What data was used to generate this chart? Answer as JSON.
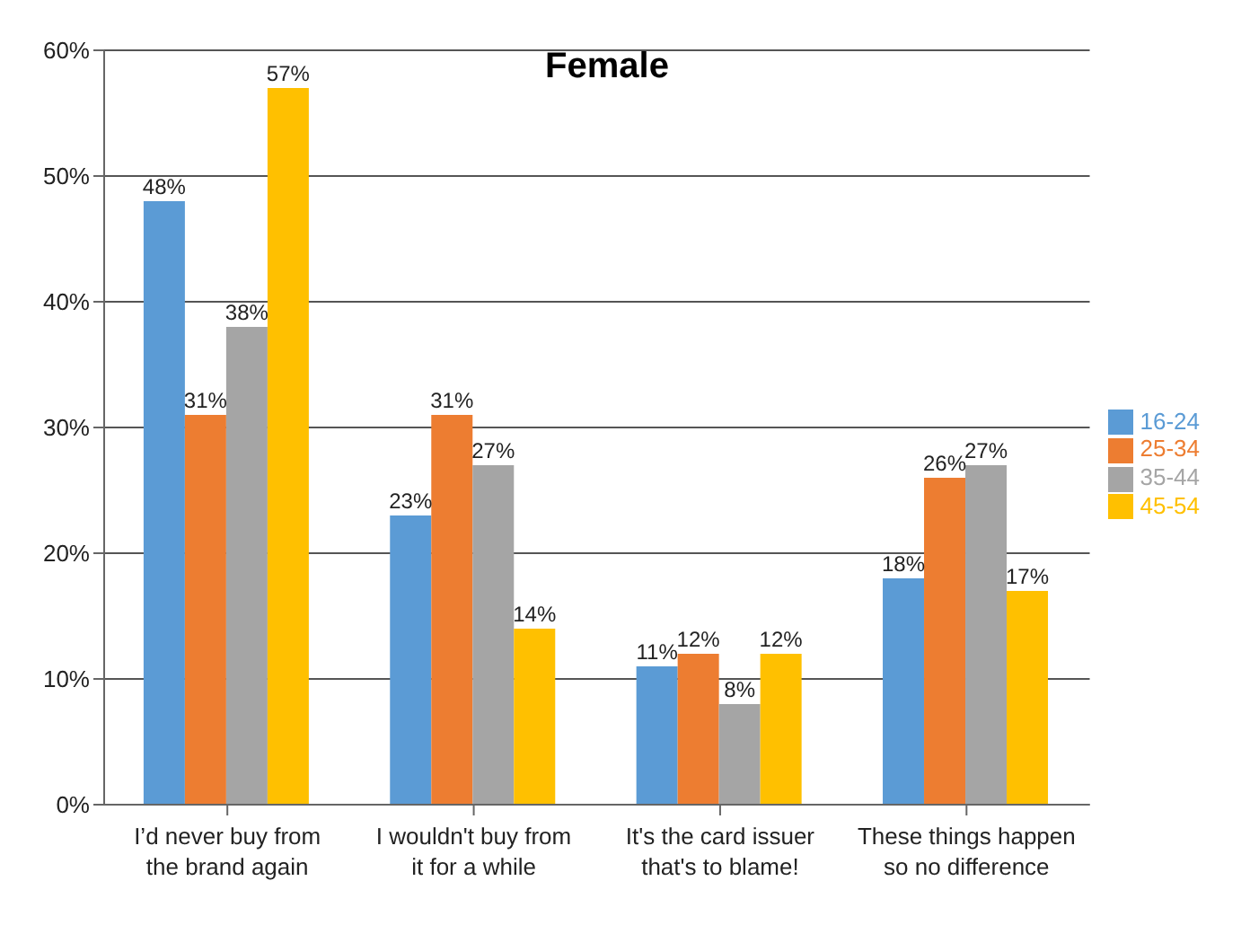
{
  "chart_data": {
    "type": "bar",
    "title": "Female",
    "categories": [
      "I’d never buy from the brand again",
      "I wouldn't buy from it for a while",
      "It's the card issuer that's to blame!",
      "These things happen so no difference"
    ],
    "series": [
      {
        "name": "16-24",
        "color": "#5b9bd5",
        "values": [
          48,
          23,
          11,
          18
        ],
        "value_labels": [
          "48%",
          "23%",
          "11%",
          "18%"
        ]
      },
      {
        "name": "25-34",
        "color": "#ed7d31",
        "values": [
          31,
          31,
          12,
          26
        ],
        "value_labels": [
          "31%",
          "31%",
          "12%",
          "26%"
        ]
      },
      {
        "name": "35-44",
        "color": "#a5a5a5",
        "values": [
          38,
          27,
          8,
          27
        ],
        "value_labels": [
          "38%",
          "27%",
          "8%",
          "27%"
        ]
      },
      {
        "name": "45-54",
        "color": "#ffc000",
        "values": [
          57,
          14,
          12,
          17
        ],
        "value_labels": [
          "57%",
          "14%",
          "12%",
          "17%"
        ]
      }
    ],
    "ylim": [
      0,
      60
    ],
    "yticks": [
      {
        "value": 0,
        "label": "0%"
      },
      {
        "value": 10,
        "label": "10%"
      },
      {
        "value": 20,
        "label": "20%"
      },
      {
        "value": 30,
        "label": "30%"
      },
      {
        "value": 40,
        "label": "40%"
      },
      {
        "value": 50,
        "label": "50%"
      },
      {
        "value": 60,
        "label": "60%"
      }
    ],
    "grid": "y",
    "legend": "right"
  }
}
